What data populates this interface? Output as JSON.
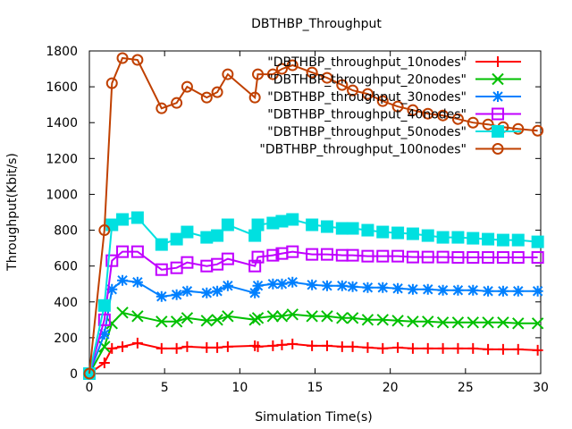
{
  "chart_data": {
    "type": "line",
    "title": "DBTHBP_Throughput",
    "xlabel": "Simulation Time(s)",
    "ylabel": "Throughput(Kbit/s)",
    "xlim": [
      0,
      30
    ],
    "ylim": [
      0,
      1800
    ],
    "xticks": [
      0,
      5,
      10,
      15,
      20,
      25,
      30
    ],
    "yticks": [
      0,
      200,
      400,
      600,
      800,
      1000,
      1200,
      1400,
      1600,
      1800
    ],
    "xtick_labels": [
      "0",
      "5",
      "10",
      "15",
      "20",
      "25",
      "30"
    ],
    "ytick_labels": [
      "0",
      "200",
      "400",
      "600",
      "800",
      "1000",
      "1200",
      "1400",
      "1600",
      "1800"
    ],
    "legend_position": "top-right",
    "grid": false,
    "series": [
      {
        "name": "\"DBTHBP_throughput_10nodes\"",
        "color": "#ff0000",
        "marker": "plus",
        "x": [
          0,
          1,
          1.5,
          2.2,
          3.2,
          4.8,
          5.8,
          6.5,
          7.8,
          8.5,
          9.2,
          11,
          11.2,
          12.2,
          12.8,
          13.5,
          14.8,
          15.8,
          16.8,
          17.5,
          18.5,
          19.5,
          20.5,
          21.5,
          22.5,
          23.5,
          24.5,
          25.5,
          26.5,
          27.5,
          28.5,
          29.8
        ],
        "y": [
          0,
          60,
          140,
          150,
          170,
          140,
          140,
          150,
          145,
          145,
          150,
          155,
          150,
          155,
          160,
          165,
          155,
          155,
          150,
          150,
          145,
          140,
          145,
          140,
          140,
          140,
          140,
          140,
          135,
          135,
          135,
          130
        ]
      },
      {
        "name": "\"DBTHBP_throughput_20nodes\"",
        "color": "#00c000",
        "marker": "x",
        "x": [
          0,
          1,
          1.5,
          2.2,
          3.2,
          4.8,
          5.8,
          6.5,
          7.8,
          8.5,
          9.2,
          11,
          11.2,
          12.2,
          12.8,
          13.5,
          14.8,
          15.8,
          16.8,
          17.5,
          18.5,
          19.5,
          20.5,
          21.5,
          22.5,
          23.5,
          24.5,
          25.5,
          26.5,
          27.5,
          28.5,
          29.8
        ],
        "y": [
          0,
          150,
          280,
          340,
          320,
          290,
          290,
          310,
          295,
          300,
          320,
          300,
          310,
          320,
          320,
          330,
          320,
          320,
          310,
          310,
          300,
          300,
          295,
          290,
          290,
          285,
          285,
          285,
          285,
          285,
          280,
          280
        ]
      },
      {
        "name": "\"DBTHBP_throughput_30nodes\"",
        "color": "#0080ff",
        "marker": "star",
        "x": [
          0,
          1,
          1.5,
          2.2,
          3.2,
          4.8,
          5.8,
          6.5,
          7.8,
          8.5,
          9.2,
          11,
          11.2,
          12.2,
          12.8,
          13.5,
          14.8,
          15.8,
          16.8,
          17.5,
          18.5,
          19.5,
          20.5,
          21.5,
          22.5,
          23.5,
          24.5,
          25.5,
          26.5,
          27.5,
          28.5,
          29.8
        ],
        "y": [
          0,
          220,
          470,
          520,
          510,
          430,
          440,
          460,
          450,
          460,
          490,
          450,
          490,
          500,
          500,
          510,
          495,
          490,
          490,
          485,
          480,
          480,
          475,
          470,
          470,
          465,
          465,
          465,
          460,
          460,
          460,
          460
        ]
      },
      {
        "name": "\"DBTHBP_throughput_40nodes\"",
        "color": "#c000ff",
        "marker": "square",
        "x": [
          0,
          1,
          1.5,
          2.2,
          3.2,
          4.8,
          5.8,
          6.5,
          7.8,
          8.5,
          9.2,
          11,
          11.2,
          12.2,
          12.8,
          13.5,
          14.8,
          15.8,
          16.8,
          17.5,
          18.5,
          19.5,
          20.5,
          21.5,
          22.5,
          23.5,
          24.5,
          25.5,
          26.5,
          27.5,
          28.5,
          29.8
        ],
        "y": [
          0,
          300,
          630,
          680,
          680,
          580,
          590,
          620,
          600,
          610,
          640,
          600,
          650,
          660,
          670,
          680,
          665,
          665,
          660,
          660,
          655,
          655,
          655,
          650,
          650,
          650,
          648,
          648,
          648,
          648,
          648,
          648
        ]
      },
      {
        "name": "\"DBTHBP_throughput_50nodes\"",
        "color": "#00e0e0",
        "marker": "filled-square",
        "x": [
          0,
          1,
          1.5,
          2.2,
          3.2,
          4.8,
          5.8,
          6.5,
          7.8,
          8.5,
          9.2,
          11,
          11.2,
          12.2,
          12.8,
          13.5,
          14.8,
          15.8,
          16.8,
          17.5,
          18.5,
          19.5,
          20.5,
          21.5,
          22.5,
          23.5,
          24.5,
          25.5,
          26.5,
          27.5,
          28.5,
          29.8
        ],
        "y": [
          0,
          380,
          830,
          860,
          870,
          720,
          750,
          790,
          760,
          770,
          830,
          770,
          830,
          840,
          850,
          860,
          830,
          820,
          810,
          810,
          800,
          790,
          785,
          780,
          770,
          760,
          760,
          755,
          750,
          745,
          745,
          735
        ]
      },
      {
        "name": "\"DBTHBP_throughput_100nodes\"",
        "color": "#c04000",
        "marker": "circle",
        "x": [
          0,
          1,
          1.5,
          2.2,
          3.2,
          4.8,
          5.8,
          6.5,
          7.8,
          8.5,
          9.2,
          11,
          11.2,
          12.2,
          12.8,
          13.5,
          14.8,
          15.8,
          16.8,
          17.5,
          18.5,
          19.5,
          20.5,
          21.5,
          22.5,
          23.5,
          24.5,
          25.5,
          26.5,
          27.5,
          28.5,
          29.8
        ],
        "y": [
          0,
          800,
          1620,
          1760,
          1750,
          1480,
          1510,
          1600,
          1540,
          1570,
          1670,
          1540,
          1670,
          1670,
          1700,
          1720,
          1680,
          1650,
          1610,
          1580,
          1560,
          1520,
          1490,
          1470,
          1450,
          1440,
          1420,
          1400,
          1390,
          1375,
          1365,
          1355
        ]
      }
    ]
  }
}
